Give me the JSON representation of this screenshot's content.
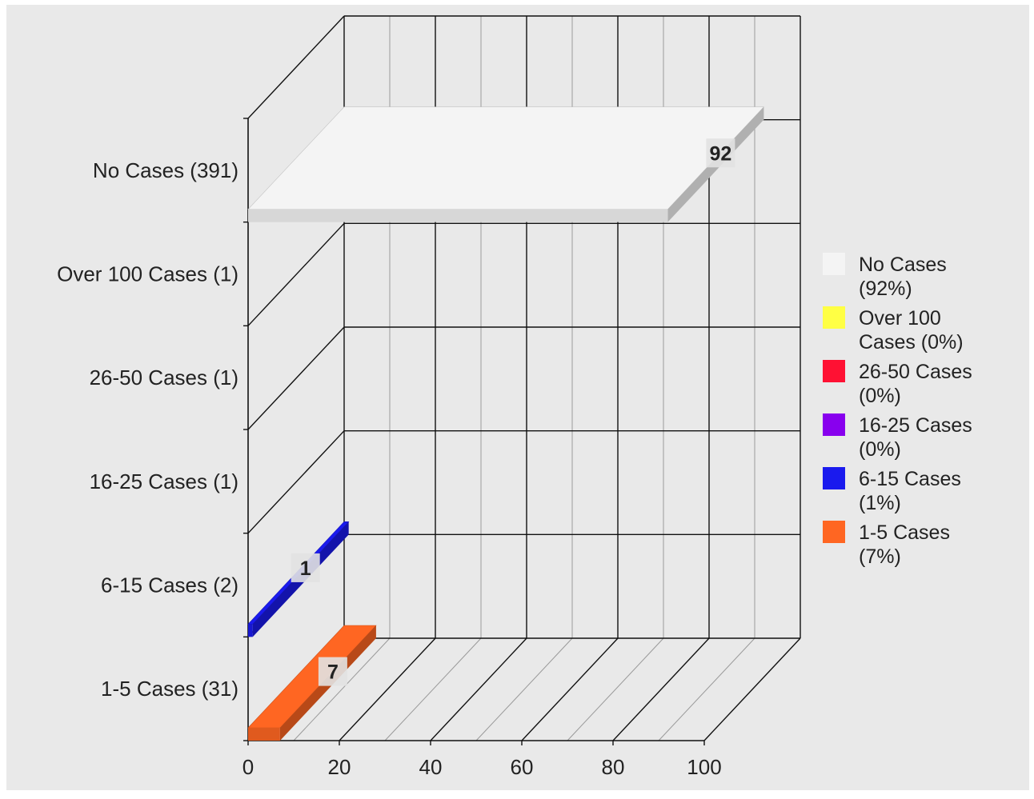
{
  "chart_data": {
    "type": "bar",
    "orientation": "horizontal",
    "style": "3d",
    "categories": [
      "No Cases (391)",
      "Over 100 Cases (1)",
      "26-50 Cases (1)",
      "16-25 Cases (1)",
      "6-15 Cases (2)",
      "1-5 Cases (31)"
    ],
    "values": [
      92,
      0,
      0,
      0,
      1,
      7
    ],
    "value_labels": [
      "92",
      "",
      "",
      "",
      "1",
      "7"
    ],
    "colors": [
      "#f4f4f4",
      "#ffff44",
      "#ff1133",
      "#8800ee",
      "#1a1aee",
      "#ff6622"
    ],
    "xlim": [
      0,
      100
    ],
    "xticks": [
      "0",
      "20",
      "40",
      "60",
      "80",
      "100"
    ],
    "grid": true,
    "legend": {
      "position": "right",
      "entries": [
        {
          "line1": "No Cases",
          "line2": "(92%)",
          "color": "#f4f4f4"
        },
        {
          "line1": "Over 100",
          "line2": "Cases (0%)",
          "color": "#ffff44"
        },
        {
          "line1": "26-50 Cases",
          "line2": "(0%)",
          "color": "#ff1133"
        },
        {
          "line1": "16-25 Cases",
          "line2": "(0%)",
          "color": "#8800ee"
        },
        {
          "line1": "6-15 Cases",
          "line2": "(1%)",
          "color": "#1a1aee"
        },
        {
          "line1": "1-5 Cases",
          "line2": "(7%)",
          "color": "#ff6622"
        }
      ]
    }
  }
}
